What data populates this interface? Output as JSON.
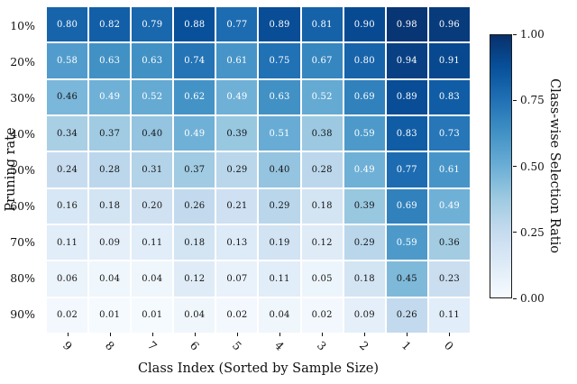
{
  "chart_data": {
    "type": "heatmap",
    "xlabel": "Class Index (Sorted by Sample Size)",
    "ylabel": "Pruning rate",
    "colorbar_label": "Class-wise Selection Ratio",
    "colorbar_tick_labels": [
      "1.00",
      "0.75",
      "0.50",
      "0.25",
      "0.00"
    ],
    "vmin": 0.0,
    "vmax": 1.0,
    "colormap": "Blues",
    "colormap_stops": [
      {
        "pos": 0.0,
        "color": "#f7fbff"
      },
      {
        "pos": 0.125,
        "color": "#deebf7"
      },
      {
        "pos": 0.25,
        "color": "#c6dbef"
      },
      {
        "pos": 0.375,
        "color": "#9ecae1"
      },
      {
        "pos": 0.5,
        "color": "#6baed6"
      },
      {
        "pos": 0.625,
        "color": "#4292c6"
      },
      {
        "pos": 0.75,
        "color": "#2171b5"
      },
      {
        "pos": 0.875,
        "color": "#08519c"
      },
      {
        "pos": 1.0,
        "color": "#08306b"
      }
    ],
    "annotation_text_dark": "#151515",
    "annotation_text_light": "#ffffff",
    "row_labels": [
      "10%",
      "20%",
      "30%",
      "40%",
      "50%",
      "60%",
      "70%",
      "80%",
      "90%"
    ],
    "col_labels": [
      "9",
      "8",
      "7",
      "6",
      "5",
      "4",
      "3",
      "2",
      "1",
      "0"
    ],
    "values": [
      [
        0.8,
        0.82,
        0.79,
        0.88,
        0.77,
        0.89,
        0.81,
        0.9,
        0.98,
        0.96
      ],
      [
        0.58,
        0.63,
        0.63,
        0.74,
        0.61,
        0.75,
        0.67,
        0.8,
        0.94,
        0.91
      ],
      [
        0.46,
        0.49,
        0.52,
        0.62,
        0.49,
        0.63,
        0.52,
        0.69,
        0.89,
        0.83
      ],
      [
        0.34,
        0.37,
        0.4,
        0.49,
        0.39,
        0.51,
        0.38,
        0.59,
        0.83,
        0.73
      ],
      [
        0.24,
        0.28,
        0.31,
        0.37,
        0.29,
        0.4,
        0.28,
        0.49,
        0.77,
        0.61
      ],
      [
        0.16,
        0.18,
        0.2,
        0.26,
        0.21,
        0.29,
        0.18,
        0.39,
        0.69,
        0.49
      ],
      [
        0.11,
        0.09,
        0.11,
        0.18,
        0.13,
        0.19,
        0.12,
        0.29,
        0.59,
        0.36
      ],
      [
        0.06,
        0.04,
        0.04,
        0.12,
        0.07,
        0.11,
        0.05,
        0.18,
        0.45,
        0.23
      ],
      [
        0.02,
        0.01,
        0.01,
        0.04,
        0.02,
        0.04,
        0.02,
        0.09,
        0.26,
        0.11
      ]
    ]
  }
}
